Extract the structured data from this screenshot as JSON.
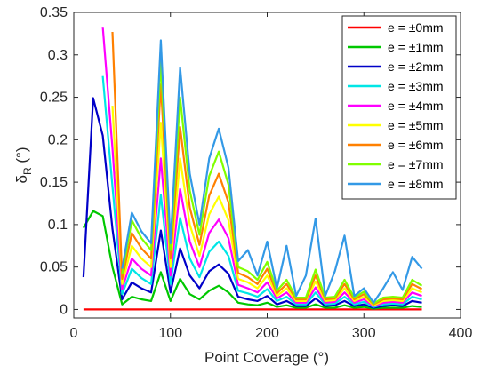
{
  "chart_data": {
    "type": "line",
    "xlabel": "Point Coverage (°)",
    "ylabel_main": "δ",
    "ylabel_sub": "R",
    "ylabel_unit": " (°)",
    "xlim": [
      0,
      400
    ],
    "ylim": [
      -0.01,
      0.35
    ],
    "xticks": [
      0,
      100,
      200,
      300,
      400
    ],
    "yticks": [
      0,
      0.05,
      0.1,
      0.15,
      0.2,
      0.25,
      0.3,
      0.35
    ],
    "xtick_labels": [
      "0",
      "100",
      "200",
      "300",
      "400"
    ],
    "ytick_labels": [
      "0",
      "0.05",
      "0.1",
      "0.15",
      "0.2",
      "0.25",
      "0.3",
      "0.35"
    ],
    "grid": false,
    "legend_position": "top-right",
    "series": [
      {
        "name": "e = ±0mm",
        "color": "#ff0000",
        "x": [
          10,
          360
        ],
        "y": [
          0,
          0
        ]
      },
      {
        "name": "e = ±1mm",
        "color": "#00c800",
        "x": [
          10,
          20,
          30,
          40,
          50,
          60,
          70,
          80,
          90,
          100,
          110,
          120,
          130,
          140,
          150,
          160,
          170,
          180,
          190,
          200,
          210,
          220,
          230,
          240,
          250,
          260,
          270,
          280,
          290,
          300,
          310,
          320,
          330,
          340,
          350,
          360
        ],
        "y": [
          0.096,
          0.116,
          0.11,
          0.05,
          0.006,
          0.015,
          0.012,
          0.01,
          0.044,
          0.01,
          0.036,
          0.018,
          0.012,
          0.022,
          0.028,
          0.02,
          0.008,
          0.006,
          0.005,
          0.008,
          0.003,
          0.005,
          0.002,
          0.002,
          0.006,
          0.002,
          0.002,
          0.005,
          0.002,
          0.003,
          0.001,
          0.002,
          0.002,
          0.002,
          0.004,
          0.003
        ]
      },
      {
        "name": "e = ±2mm",
        "color": "#0000c8",
        "x": [
          10,
          20,
          30,
          40,
          50,
          60,
          70,
          80,
          90,
          100,
          110,
          120,
          130,
          140,
          150,
          160,
          170,
          180,
          190,
          200,
          210,
          220,
          230,
          240,
          250,
          260,
          270,
          280,
          290,
          300,
          310,
          320,
          330,
          340,
          350,
          360
        ],
        "y": [
          0.038,
          0.249,
          0.205,
          0.095,
          0.012,
          0.032,
          0.025,
          0.02,
          0.093,
          0.02,
          0.072,
          0.04,
          0.025,
          0.045,
          0.053,
          0.042,
          0.015,
          0.012,
          0.01,
          0.016,
          0.006,
          0.01,
          0.004,
          0.004,
          0.013,
          0.004,
          0.005,
          0.01,
          0.004,
          0.006,
          0.002,
          0.004,
          0.005,
          0.004,
          0.01,
          0.008
        ]
      },
      {
        "name": "e = ±3mm",
        "color": "#00e6e6",
        "x": [
          30,
          40,
          50,
          60,
          70,
          80,
          90,
          100,
          110,
          120,
          130,
          140,
          150,
          160,
          170,
          180,
          190,
          200,
          210,
          220,
          230,
          240,
          250,
          260,
          270,
          280,
          290,
          300,
          310,
          320,
          330,
          340,
          350,
          360
        ],
        "y": [
          0.275,
          0.145,
          0.018,
          0.048,
          0.037,
          0.03,
          0.135,
          0.03,
          0.108,
          0.06,
          0.038,
          0.068,
          0.08,
          0.063,
          0.022,
          0.019,
          0.015,
          0.024,
          0.01,
          0.015,
          0.006,
          0.006,
          0.02,
          0.006,
          0.007,
          0.015,
          0.006,
          0.009,
          0.003,
          0.006,
          0.007,
          0.006,
          0.015,
          0.012
        ]
      },
      {
        "name": "e = ±4mm",
        "color": "#ff00ff",
        "x": [
          30,
          40,
          50,
          60,
          70,
          80,
          90,
          100,
          110,
          120,
          130,
          140,
          150,
          160,
          170,
          180,
          190,
          200,
          210,
          220,
          230,
          240,
          250,
          260,
          270,
          280,
          290,
          300,
          310,
          320,
          330,
          340,
          350,
          360
        ],
        "y": [
          0.333,
          0.19,
          0.024,
          0.06,
          0.048,
          0.04,
          0.178,
          0.04,
          0.142,
          0.08,
          0.05,
          0.09,
          0.106,
          0.084,
          0.029,
          0.025,
          0.02,
          0.032,
          0.013,
          0.02,
          0.008,
          0.008,
          0.026,
          0.008,
          0.009,
          0.02,
          0.008,
          0.012,
          0.004,
          0.008,
          0.009,
          0.008,
          0.02,
          0.016
        ]
      },
      {
        "name": "e = ±5mm",
        "color": "#ffff00",
        "x": [
          40,
          50,
          60,
          70,
          80,
          90,
          100,
          110,
          120,
          130,
          140,
          150,
          160,
          170,
          180,
          190,
          200,
          210,
          220,
          230,
          240,
          250,
          260,
          270,
          280,
          290,
          300,
          310,
          320,
          330,
          340,
          350,
          360
        ],
        "y": [
          0.24,
          0.03,
          0.075,
          0.06,
          0.05,
          0.22,
          0.05,
          0.178,
          0.1,
          0.063,
          0.112,
          0.133,
          0.105,
          0.036,
          0.032,
          0.025,
          0.04,
          0.016,
          0.025,
          0.01,
          0.01,
          0.033,
          0.01,
          0.011,
          0.025,
          0.01,
          0.015,
          0.005,
          0.01,
          0.011,
          0.01,
          0.025,
          0.02
        ]
      },
      {
        "name": "e = ±6mm",
        "color": "#ff8000",
        "x": [
          40,
          50,
          60,
          70,
          80,
          90,
          100,
          110,
          120,
          130,
          140,
          150,
          160,
          170,
          180,
          190,
          200,
          210,
          220,
          230,
          240,
          250,
          260,
          270,
          280,
          290,
          300,
          310,
          320,
          330,
          340,
          350,
          360
        ],
        "y": [
          0.327,
          0.036,
          0.09,
          0.072,
          0.06,
          0.265,
          0.06,
          0.215,
          0.12,
          0.076,
          0.134,
          0.16,
          0.126,
          0.043,
          0.038,
          0.03,
          0.048,
          0.019,
          0.03,
          0.012,
          0.012,
          0.04,
          0.012,
          0.013,
          0.03,
          0.012,
          0.018,
          0.006,
          0.012,
          0.013,
          0.012,
          0.03,
          0.024
        ]
      },
      {
        "name": "e = ±7mm",
        "color": "#80ff00",
        "x": [
          50,
          60,
          70,
          80,
          90,
          100,
          110,
          120,
          130,
          140,
          150,
          160,
          170,
          180,
          190,
          200,
          210,
          220,
          230,
          240,
          250,
          260,
          270,
          280,
          290,
          300,
          310,
          320,
          330,
          340,
          350,
          360
        ],
        "y": [
          0.042,
          0.105,
          0.084,
          0.07,
          0.292,
          0.07,
          0.25,
          0.14,
          0.088,
          0.157,
          0.186,
          0.147,
          0.05,
          0.045,
          0.035,
          0.056,
          0.022,
          0.035,
          0.014,
          0.014,
          0.047,
          0.014,
          0.015,
          0.035,
          0.014,
          0.021,
          0.007,
          0.014,
          0.015,
          0.014,
          0.035,
          0.028
        ]
      },
      {
        "name": "e = ±8mm",
        "color": "#3399e6",
        "x": [
          50,
          60,
          70,
          80,
          90,
          100,
          110,
          120,
          130,
          140,
          150,
          160,
          170,
          180,
          190,
          200,
          210,
          220,
          230,
          240,
          250,
          260,
          270,
          280,
          290,
          300,
          310,
          320,
          330,
          340,
          350,
          360
        ],
        "y": [
          0.048,
          0.114,
          0.092,
          0.078,
          0.317,
          0.078,
          0.285,
          0.16,
          0.1,
          0.178,
          0.213,
          0.167,
          0.057,
          0.07,
          0.04,
          0.08,
          0.025,
          0.075,
          0.016,
          0.04,
          0.107,
          0.016,
          0.045,
          0.087,
          0.016,
          0.025,
          0.008,
          0.025,
          0.044,
          0.023,
          0.062,
          0.048
        ]
      }
    ]
  }
}
